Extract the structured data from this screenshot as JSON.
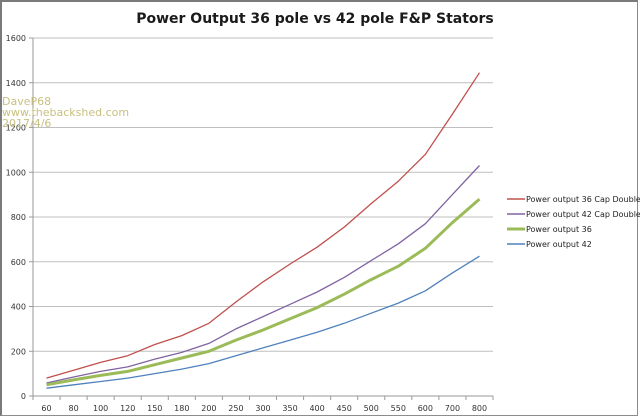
{
  "chart_data": {
    "type": "line",
    "title": "Power Output 36 pole vs 42 pole F&P Stators",
    "xlabel": "",
    "ylabel": "",
    "categories": [
      "60",
      "80",
      "100",
      "120",
      "150",
      "180",
      "200",
      "250",
      "300",
      "350",
      "400",
      "450",
      "500",
      "550",
      "600",
      "700",
      "800"
    ],
    "ylim": [
      0,
      1600
    ],
    "yticks": [
      0,
      200,
      400,
      600,
      800,
      1000,
      1200,
      1400,
      1600
    ],
    "grid": "horizontal",
    "legend_position": "right",
    "series": [
      {
        "name": "Power output 36 Cap Doubler",
        "color": "#c0504d",
        "width": "thin",
        "values": [
          80,
          115,
          150,
          180,
          230,
          270,
          325,
          420,
          510,
          590,
          665,
          755,
          860,
          960,
          1080,
          1260,
          1445
        ]
      },
      {
        "name": "Power output 42 Cap Doubler",
        "color": "#8064a2",
        "width": "thin",
        "values": [
          58,
          85,
          110,
          130,
          165,
          195,
          235,
          300,
          355,
          410,
          465,
          530,
          605,
          680,
          770,
          900,
          1030
        ]
      },
      {
        "name": "Power output 36",
        "color": "#9bbb59",
        "width": "thick",
        "values": [
          50,
          72,
          92,
          110,
          140,
          170,
          200,
          250,
          295,
          345,
          395,
          455,
          520,
          580,
          660,
          775,
          880
        ]
      },
      {
        "name": "Power output 42",
        "color": "#4f81bd",
        "width": "thin",
        "values": [
          35,
          50,
          65,
          80,
          100,
          120,
          145,
          180,
          215,
          250,
          285,
          325,
          370,
          415,
          470,
          550,
          625
        ]
      }
    ]
  },
  "watermark": {
    "line1": "DaveP68",
    "line2": "www.thebackshed.com",
    "line3": "2017/4/6"
  }
}
